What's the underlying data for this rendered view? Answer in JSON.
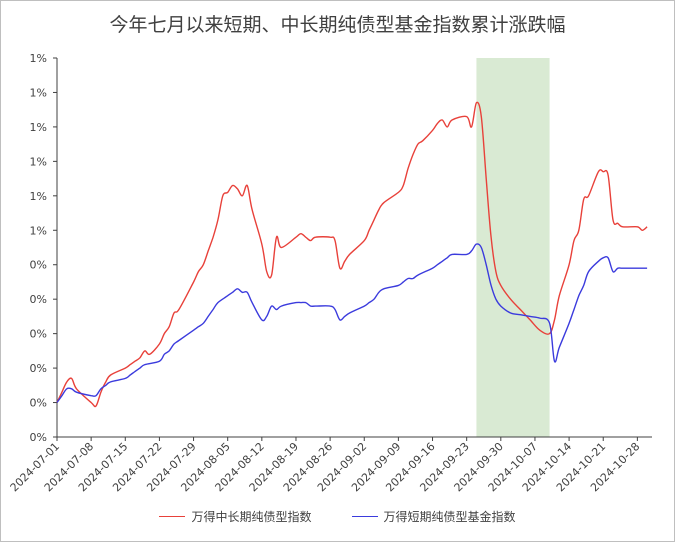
{
  "title": "今年七月以来短期、中长期纯债型基金指数累计涨跌幅",
  "chart_data": {
    "type": "line",
    "title": "今年七月以来短期、中长期纯债型基金指数累计涨跌幅",
    "xlabel": "",
    "ylabel": "",
    "x_ticks": [
      "2024-07-01",
      "2024-07-08",
      "2024-07-15",
      "2024-07-22",
      "2024-07-29",
      "2024-08-05",
      "2024-08-12",
      "2024-08-19",
      "2024-08-26",
      "2024-09-02",
      "2024-09-09",
      "2024-09-16",
      "2024-09-23",
      "2024-09-30",
      "2024-10-07",
      "2024-10-14",
      "2024-10-21",
      "2024-10-28"
    ],
    "y_tick_labels": [
      "0%",
      "0%",
      "0%",
      "0%",
      "0%",
      "0%",
      "1%",
      "1%",
      "1%",
      "1%",
      "1%",
      "1%"
    ],
    "ylim": [
      0,
      1.1
    ],
    "grid": false,
    "legend": "bottom",
    "shaded_region": {
      "from": "2024-09-25",
      "to": "2024-10-10",
      "color": "#d9ead3"
    },
    "series": [
      {
        "name": "万得中长期纯债型指数",
        "color": "#e8413a",
        "points": [
          [
            "2024-07-01",
            0.1
          ],
          [
            "2024-07-02",
            0.13
          ],
          [
            "2024-07-03",
            0.16
          ],
          [
            "2024-07-04",
            0.17
          ],
          [
            "2024-07-05",
            0.14
          ],
          [
            "2024-07-08",
            0.1
          ],
          [
            "2024-07-09",
            0.09
          ],
          [
            "2024-07-10",
            0.13
          ],
          [
            "2024-07-11",
            0.16
          ],
          [
            "2024-07-12",
            0.18
          ],
          [
            "2024-07-15",
            0.2
          ],
          [
            "2024-07-16",
            0.21
          ],
          [
            "2024-07-17",
            0.22
          ],
          [
            "2024-07-18",
            0.23
          ],
          [
            "2024-07-19",
            0.25
          ],
          [
            "2024-07-20",
            0.24
          ],
          [
            "2024-07-22",
            0.27
          ],
          [
            "2024-07-23",
            0.3
          ],
          [
            "2024-07-24",
            0.32
          ],
          [
            "2024-07-25",
            0.36
          ],
          [
            "2024-07-26",
            0.37
          ],
          [
            "2024-07-29",
            0.45
          ],
          [
            "2024-07-30",
            0.48
          ],
          [
            "2024-07-31",
            0.5
          ],
          [
            "2024-08-01",
            0.54
          ],
          [
            "2024-08-02",
            0.58
          ],
          [
            "2024-08-03",
            0.63
          ],
          [
            "2024-08-04",
            0.7
          ],
          [
            "2024-08-05",
            0.71
          ],
          [
            "2024-08-06",
            0.73
          ],
          [
            "2024-08-07",
            0.72
          ],
          [
            "2024-08-08",
            0.7
          ],
          [
            "2024-08-09",
            0.73
          ],
          [
            "2024-08-10",
            0.66
          ],
          [
            "2024-08-12",
            0.56
          ],
          [
            "2024-08-13",
            0.48
          ],
          [
            "2024-08-14",
            0.47
          ],
          [
            "2024-08-15",
            0.58
          ],
          [
            "2024-08-16",
            0.55
          ],
          [
            "2024-08-19",
            0.58
          ],
          [
            "2024-08-20",
            0.59
          ],
          [
            "2024-08-21",
            0.58
          ],
          [
            "2024-08-22",
            0.57
          ],
          [
            "2024-08-23",
            0.58
          ],
          [
            "2024-08-26",
            0.58
          ],
          [
            "2024-08-27",
            0.57
          ],
          [
            "2024-08-28",
            0.49
          ],
          [
            "2024-08-29",
            0.51
          ],
          [
            "2024-08-30",
            0.53
          ],
          [
            "2024-09-02",
            0.57
          ],
          [
            "2024-09-03",
            0.6
          ],
          [
            "2024-09-04",
            0.63
          ],
          [
            "2024-09-05",
            0.66
          ],
          [
            "2024-09-06",
            0.68
          ],
          [
            "2024-09-09",
            0.71
          ],
          [
            "2024-09-10",
            0.73
          ],
          [
            "2024-09-11",
            0.78
          ],
          [
            "2024-09-12",
            0.82
          ],
          [
            "2024-09-13",
            0.85
          ],
          [
            "2024-09-14",
            0.86
          ],
          [
            "2024-09-16",
            0.89
          ],
          [
            "2024-09-17",
            0.91
          ],
          [
            "2024-09-18",
            0.92
          ],
          [
            "2024-09-19",
            0.9
          ],
          [
            "2024-09-20",
            0.92
          ],
          [
            "2024-09-23",
            0.93
          ],
          [
            "2024-09-24",
            0.9
          ],
          [
            "2024-09-25",
            0.97
          ],
          [
            "2024-09-26",
            0.93
          ],
          [
            "2024-09-27",
            0.75
          ],
          [
            "2024-09-28",
            0.58
          ],
          [
            "2024-09-29",
            0.48
          ],
          [
            "2024-09-30",
            0.44
          ],
          [
            "2024-10-02",
            0.4
          ],
          [
            "2024-10-04",
            0.37
          ],
          [
            "2024-10-06",
            0.34
          ],
          [
            "2024-10-08",
            0.31
          ],
          [
            "2024-10-10",
            0.3
          ],
          [
            "2024-10-11",
            0.34
          ],
          [
            "2024-10-12",
            0.41
          ],
          [
            "2024-10-14",
            0.5
          ],
          [
            "2024-10-15",
            0.57
          ],
          [
            "2024-10-16",
            0.6
          ],
          [
            "2024-10-17",
            0.69
          ],
          [
            "2024-10-18",
            0.7
          ],
          [
            "2024-10-20",
            0.77
          ],
          [
            "2024-10-21",
            0.77
          ],
          [
            "2024-10-22",
            0.76
          ],
          [
            "2024-10-23",
            0.63
          ],
          [
            "2024-10-24",
            0.62
          ],
          [
            "2024-10-25",
            0.61
          ],
          [
            "2024-10-28",
            0.61
          ],
          [
            "2024-10-29",
            0.6
          ],
          [
            "2024-10-30",
            0.61
          ]
        ]
      },
      {
        "name": "万得短期纯债型基金指数",
        "color": "#3b3bdd",
        "points": [
          [
            "2024-07-01",
            0.1
          ],
          [
            "2024-07-02",
            0.12
          ],
          [
            "2024-07-03",
            0.14
          ],
          [
            "2024-07-04",
            0.14
          ],
          [
            "2024-07-05",
            0.13
          ],
          [
            "2024-07-08",
            0.12
          ],
          [
            "2024-07-09",
            0.12
          ],
          [
            "2024-07-10",
            0.14
          ],
          [
            "2024-07-11",
            0.15
          ],
          [
            "2024-07-12",
            0.16
          ],
          [
            "2024-07-15",
            0.17
          ],
          [
            "2024-07-16",
            0.18
          ],
          [
            "2024-07-17",
            0.19
          ],
          [
            "2024-07-18",
            0.2
          ],
          [
            "2024-07-19",
            0.21
          ],
          [
            "2024-07-22",
            0.22
          ],
          [
            "2024-07-23",
            0.24
          ],
          [
            "2024-07-24",
            0.25
          ],
          [
            "2024-07-25",
            0.27
          ],
          [
            "2024-07-26",
            0.28
          ],
          [
            "2024-07-29",
            0.31
          ],
          [
            "2024-07-30",
            0.32
          ],
          [
            "2024-07-31",
            0.33
          ],
          [
            "2024-08-01",
            0.35
          ],
          [
            "2024-08-02",
            0.37
          ],
          [
            "2024-08-03",
            0.39
          ],
          [
            "2024-08-05",
            0.41
          ],
          [
            "2024-08-06",
            0.42
          ],
          [
            "2024-08-07",
            0.43
          ],
          [
            "2024-08-08",
            0.42
          ],
          [
            "2024-08-09",
            0.42
          ],
          [
            "2024-08-10",
            0.39
          ],
          [
            "2024-08-12",
            0.34
          ],
          [
            "2024-08-13",
            0.35
          ],
          [
            "2024-08-14",
            0.38
          ],
          [
            "2024-08-15",
            0.37
          ],
          [
            "2024-08-16",
            0.38
          ],
          [
            "2024-08-19",
            0.39
          ],
          [
            "2024-08-20",
            0.39
          ],
          [
            "2024-08-21",
            0.39
          ],
          [
            "2024-08-22",
            0.38
          ],
          [
            "2024-08-23",
            0.38
          ],
          [
            "2024-08-26",
            0.38
          ],
          [
            "2024-08-27",
            0.37
          ],
          [
            "2024-08-28",
            0.34
          ],
          [
            "2024-08-29",
            0.35
          ],
          [
            "2024-08-30",
            0.36
          ],
          [
            "2024-09-02",
            0.38
          ],
          [
            "2024-09-03",
            0.39
          ],
          [
            "2024-09-04",
            0.4
          ],
          [
            "2024-09-05",
            0.42
          ],
          [
            "2024-09-06",
            0.43
          ],
          [
            "2024-09-09",
            0.44
          ],
          [
            "2024-09-10",
            0.45
          ],
          [
            "2024-09-11",
            0.46
          ],
          [
            "2024-09-12",
            0.46
          ],
          [
            "2024-09-13",
            0.47
          ],
          [
            "2024-09-16",
            0.49
          ],
          [
            "2024-09-17",
            0.5
          ],
          [
            "2024-09-18",
            0.51
          ],
          [
            "2024-09-19",
            0.52
          ],
          [
            "2024-09-20",
            0.53
          ],
          [
            "2024-09-23",
            0.53
          ],
          [
            "2024-09-24",
            0.54
          ],
          [
            "2024-09-25",
            0.56
          ],
          [
            "2024-09-26",
            0.55
          ],
          [
            "2024-09-27",
            0.5
          ],
          [
            "2024-09-28",
            0.44
          ],
          [
            "2024-09-29",
            0.4
          ],
          [
            "2024-09-30",
            0.38
          ],
          [
            "2024-10-02",
            0.36
          ],
          [
            "2024-10-04",
            0.355
          ],
          [
            "2024-10-06",
            0.35
          ],
          [
            "2024-10-08",
            0.345
          ],
          [
            "2024-10-10",
            0.33
          ],
          [
            "2024-10-11",
            0.22
          ],
          [
            "2024-10-12",
            0.26
          ],
          [
            "2024-10-14",
            0.33
          ],
          [
            "2024-10-15",
            0.37
          ],
          [
            "2024-10-16",
            0.41
          ],
          [
            "2024-10-17",
            0.44
          ],
          [
            "2024-10-18",
            0.48
          ],
          [
            "2024-10-20",
            0.51
          ],
          [
            "2024-10-21",
            0.52
          ],
          [
            "2024-10-22",
            0.52
          ],
          [
            "2024-10-23",
            0.48
          ],
          [
            "2024-10-24",
            0.49
          ],
          [
            "2024-10-25",
            0.49
          ],
          [
            "2024-10-28",
            0.49
          ],
          [
            "2024-10-30",
            0.49
          ]
        ]
      }
    ]
  }
}
